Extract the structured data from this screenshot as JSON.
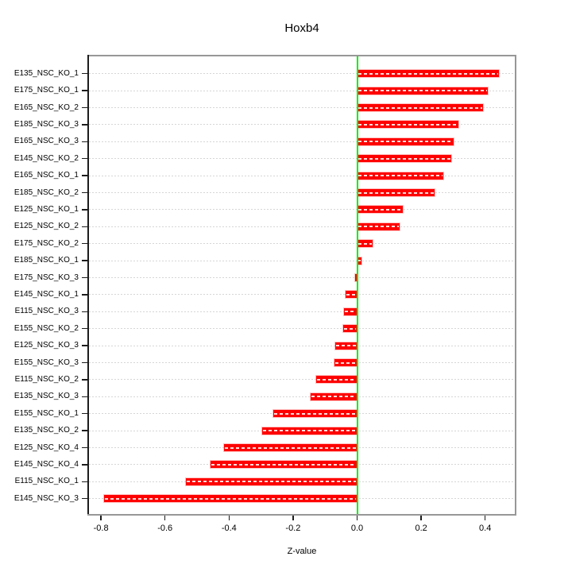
{
  "chart_data": {
    "type": "bar",
    "orientation": "horizontal",
    "title": "Hoxb4",
    "xlabel": "Z-value",
    "ylabel": "",
    "categories": [
      "E135_NSC_KO_1",
      "E175_NSC_KO_1",
      "E165_NSC_KO_2",
      "E185_NSC_KO_3",
      "E165_NSC_KO_3",
      "E145_NSC_KO_2",
      "E165_NSC_KO_1",
      "E185_NSC_KO_2",
      "E125_NSC_KO_1",
      "E125_NSC_KO_2",
      "E175_NSC_KO_2",
      "E185_NSC_KO_1",
      "E175_NSC_KO_3",
      "E145_NSC_KO_1",
      "E115_NSC_KO_3",
      "E155_NSC_KO_2",
      "E125_NSC_KO_3",
      "E155_NSC_KO_3",
      "E115_NSC_KO_2",
      "E135_NSC_KO_3",
      "E155_NSC_KO_1",
      "E135_NSC_KO_2",
      "E125_NSC_KO_4",
      "E145_NSC_KO_4",
      "E115_NSC_KO_1",
      "E145_NSC_KO_3"
    ],
    "values": [
      0.444,
      0.409,
      0.394,
      0.316,
      0.302,
      0.295,
      0.27,
      0.243,
      0.143,
      0.133,
      0.048,
      0.014,
      -0.005,
      -0.035,
      -0.041,
      -0.043,
      -0.068,
      -0.071,
      -0.129,
      -0.145,
      -0.262,
      -0.296,
      -0.416,
      -0.459,
      -0.535,
      -0.79
    ],
    "xlim": [
      -0.84,
      0.49
    ],
    "xticks": [
      -0.8,
      -0.6,
      -0.4,
      -0.2,
      0.0,
      0.2,
      0.4
    ],
    "xtick_labels": [
      "-0.8",
      "-0.6",
      "-0.4",
      "-0.2",
      "0.0",
      "0.2",
      "0.4"
    ],
    "grid": "dotted horizontal line per category",
    "legend_position": "none",
    "zero_reference_line": 0.0,
    "colors": {
      "bar": "#ff0000",
      "bar_dash_overlay": "#ffffff",
      "zero_line": "#00ee00",
      "plot_border": "#979797",
      "gridline": "#d6d6d6",
      "axis": "#1c1c1c",
      "text": "#000000",
      "background": "#ffffff"
    }
  }
}
